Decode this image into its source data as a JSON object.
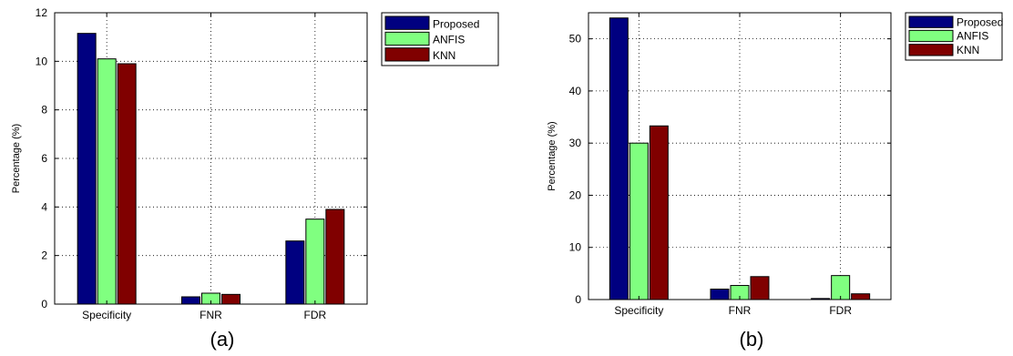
{
  "chart_data": [
    {
      "type": "bar",
      "caption": "(a)",
      "ylabel": "Percentage (%)",
      "categories": [
        "Specificity",
        "FNR",
        "FDR"
      ],
      "ylim": [
        0,
        12
      ],
      "yticks": [
        0,
        2,
        4,
        6,
        8,
        10,
        12
      ],
      "grid": true,
      "legend_position": "outside-top-right",
      "series": [
        {
          "name": "Proposed",
          "color": "#000080",
          "values": [
            11.15,
            0.3,
            2.6
          ]
        },
        {
          "name": "ANFIS",
          "color": "#80ff80",
          "values": [
            10.1,
            0.45,
            3.5
          ]
        },
        {
          "name": "KNN",
          "color": "#800000",
          "values": [
            9.9,
            0.4,
            3.9
          ]
        }
      ]
    },
    {
      "type": "bar",
      "caption": "(b)",
      "ylabel": "Percentage (%)",
      "categories": [
        "Specificity",
        "FNR",
        "FDR"
      ],
      "ylim": [
        0,
        55
      ],
      "yticks": [
        0,
        10,
        20,
        30,
        40,
        50
      ],
      "grid": true,
      "legend_position": "outside-top-right",
      "series": [
        {
          "name": "Proposed",
          "color": "#000080",
          "values": [
            54,
            2,
            0.2
          ]
        },
        {
          "name": "ANFIS",
          "color": "#80ff80",
          "values": [
            30,
            2.7,
            4.6
          ]
        },
        {
          "name": "KNN",
          "color": "#800000",
          "values": [
            33.3,
            4.4,
            1.1
          ]
        }
      ]
    }
  ]
}
